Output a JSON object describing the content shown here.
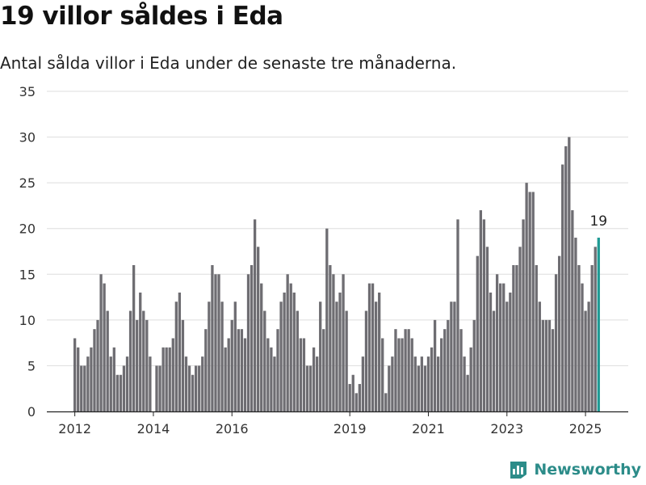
{
  "header": {
    "title": "19 villor såldes i Eda",
    "subtitle": "Antal sålda villor i Eda under de senaste tre månaderna."
  },
  "brand": {
    "name": "Newsworthy"
  },
  "colors": {
    "bar": "#6e6d72",
    "highlight": "#1f9a94",
    "grid": "#dddddd",
    "brand": "#2c8c89"
  },
  "chart_data": {
    "type": "bar",
    "ylim": [
      0,
      35
    ],
    "yticks": [
      0,
      5,
      10,
      15,
      20,
      25,
      30,
      35
    ],
    "xticks": [
      {
        "label": "2012",
        "index": 0
      },
      {
        "label": "2014",
        "index": 24
      },
      {
        "label": "2016",
        "index": 48
      },
      {
        "label": "2019",
        "index": 84
      },
      {
        "label": "2021",
        "index": 108
      },
      {
        "label": "2023",
        "index": 132
      },
      {
        "label": "2025",
        "index": 156
      }
    ],
    "highlight_label": "19",
    "series": [
      {
        "values": [
          8,
          7,
          5,
          5,
          6,
          7,
          9,
          10,
          15,
          14,
          11,
          6,
          7,
          4,
          4,
          5,
          6,
          11,
          16,
          10,
          13,
          11,
          10,
          6,
          0,
          5,
          5,
          7,
          7,
          7,
          8,
          12,
          13,
          10,
          6,
          5,
          4,
          5,
          5,
          6,
          9,
          12,
          16,
          15,
          15,
          12,
          7,
          8,
          10,
          12,
          9,
          9,
          8,
          15,
          16,
          21,
          18,
          14,
          11,
          8,
          7,
          6,
          9,
          12,
          13,
          15,
          14,
          13,
          11,
          8,
          8,
          5,
          5,
          7,
          6,
          12,
          9,
          20,
          16,
          15,
          12,
          13,
          15,
          11,
          3,
          4,
          2,
          3,
          6,
          11,
          14,
          14,
          12,
          13,
          8,
          2,
          5,
          6,
          9,
          8,
          8,
          9,
          9,
          8,
          6,
          5,
          6,
          5,
          6,
          7,
          10,
          6,
          8,
          9,
          10,
          12,
          12,
          21,
          9,
          6,
          4,
          7,
          10,
          17,
          22,
          21,
          18,
          13,
          11,
          15,
          14,
          14,
          12,
          13,
          16,
          16,
          18,
          21,
          25,
          24,
          24,
          16,
          12,
          10,
          10,
          10,
          9,
          15,
          17,
          27,
          29,
          30,
          22,
          19,
          16,
          14,
          11,
          12,
          16,
          18,
          19
        ]
      }
    ]
  }
}
